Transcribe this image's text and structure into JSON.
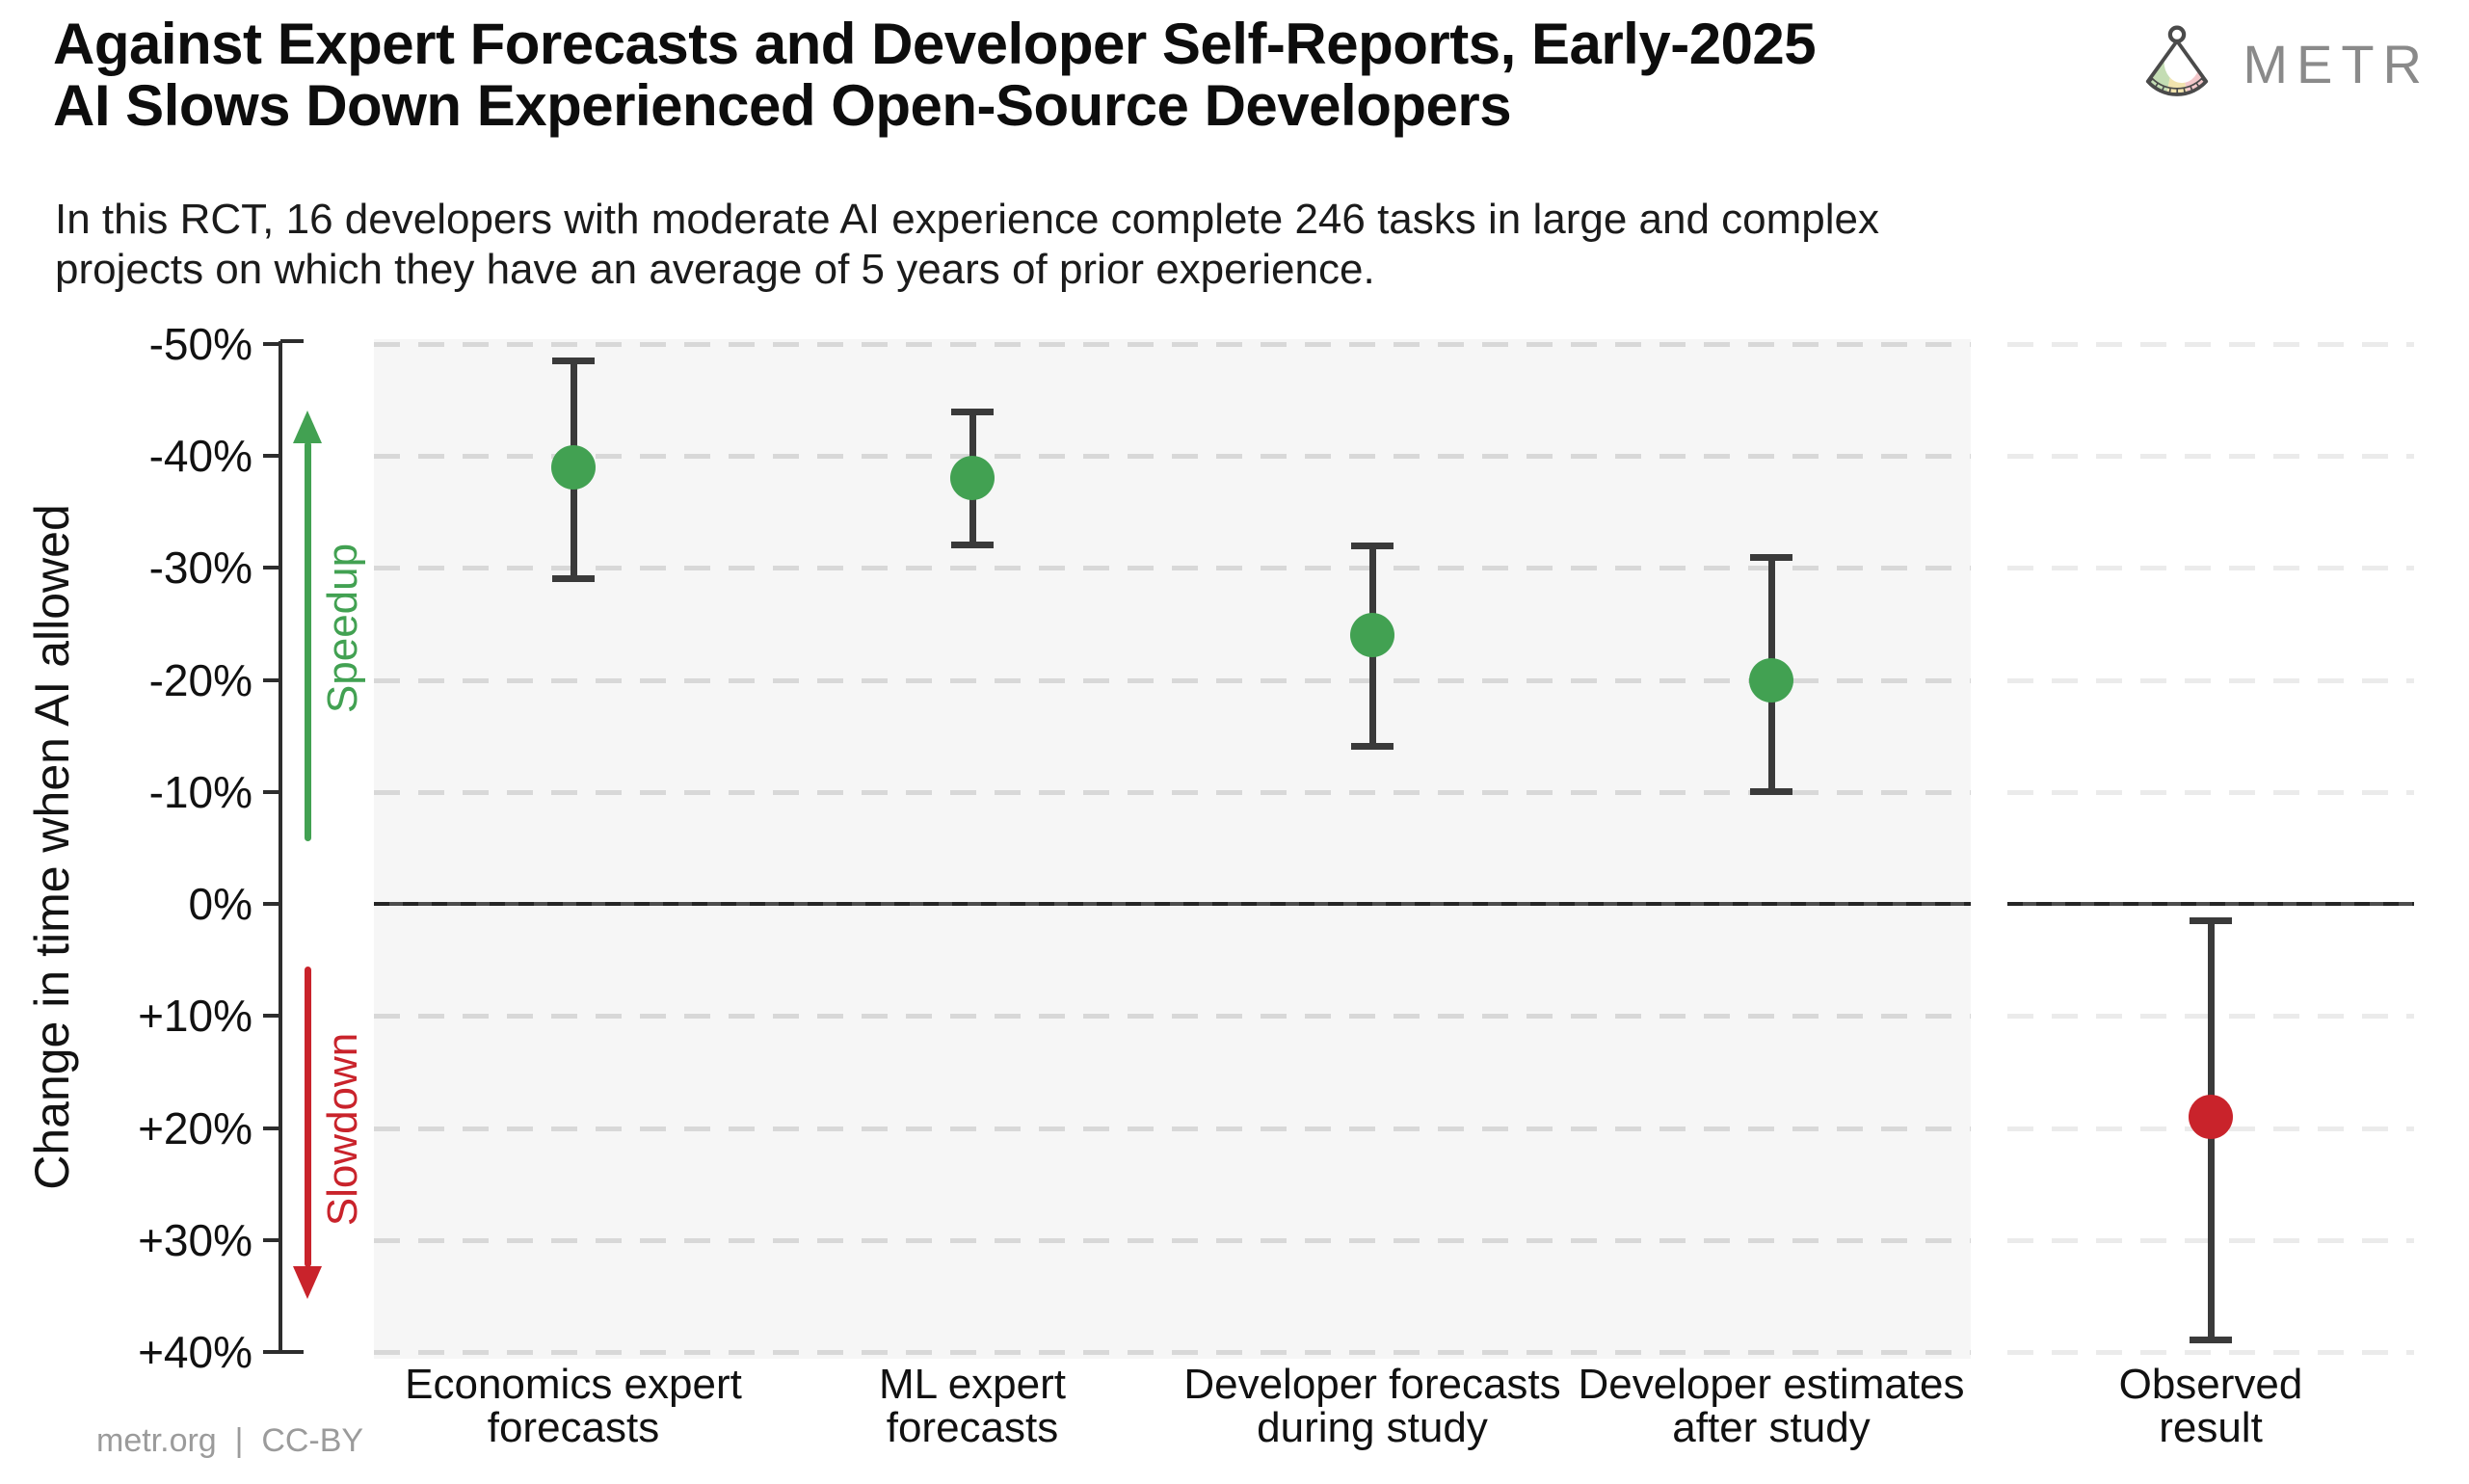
{
  "header": {
    "title_line1": "Against Expert Forecasts and Developer Self-Reports, Early-2025",
    "title_line2": "AI Slows Down Experienced Open-Source Developers",
    "subtitle_line1": "In this RCT, 16 developers with moderate AI experience complete 246 tasks in large and complex",
    "subtitle_line2": "projects on which they have an average of 5 years of prior experience.",
    "brand_name": "METR"
  },
  "footer": {
    "credit": "metr.org  |  CC-BY"
  },
  "chart_data": {
    "type": "scatter",
    "title": "Against Expert Forecasts and Developer Self-Reports, Early-2025 AI Slows Down Experienced Open-Source Developers",
    "ylabel": "Change in time when AI allowed",
    "ylim": [
      -50,
      40
    ],
    "y_axis_orientation": "inverted: negative (speedup) plotted upward, positive (slowdown) plotted downward",
    "grid": true,
    "legend": false,
    "yticks": [
      {
        "label": "-50%",
        "value": -50
      },
      {
        "label": "-40%",
        "value": -40
      },
      {
        "label": "-30%",
        "value": -30
      },
      {
        "label": "-20%",
        "value": -20
      },
      {
        "label": "-10%",
        "value": -10
      },
      {
        "label": "0%",
        "value": 0
      },
      {
        "label": "+10%",
        "value": 10
      },
      {
        "label": "+20%",
        "value": 20
      },
      {
        "label": "+30%",
        "value": 30
      },
      {
        "label": "+40%",
        "value": 40
      }
    ],
    "annotations": [
      {
        "text": "Speedup",
        "direction": "up",
        "color": "#42a152"
      },
      {
        "text": "Slowdown",
        "direction": "down",
        "color": "#c9232b"
      }
    ],
    "categories": [
      "Economics expert forecasts",
      "ML expert forecasts",
      "Developer forecasts during study",
      "Developer estimates after study",
      "Observed result"
    ],
    "points": [
      {
        "name": "economics-expert-forecasts",
        "label_lines": [
          "Economics expert",
          "forecasts"
        ],
        "value": -39,
        "ci": [
          -48.5,
          -29
        ],
        "color": "green",
        "panel": "main"
      },
      {
        "name": "ml-expert-forecasts",
        "label_lines": [
          "ML expert",
          "forecasts"
        ],
        "value": -38,
        "ci": [
          -44,
          -32
        ],
        "color": "green",
        "panel": "main"
      },
      {
        "name": "developer-forecasts-during-study",
        "label_lines": [
          "Developer forecasts",
          "during study"
        ],
        "value": -24,
        "ci": [
          -32,
          -14
        ],
        "color": "green",
        "panel": "main"
      },
      {
        "name": "developer-estimates-after-study",
        "label_lines": [
          "Developer estimates",
          "after study"
        ],
        "value": -20,
        "ci": [
          -31,
          -10
        ],
        "color": "green",
        "panel": "main"
      },
      {
        "name": "observed-result",
        "label_lines": [
          "Observed",
          "result"
        ],
        "value": 19,
        "ci": [
          1.5,
          39
        ],
        "color": "red",
        "panel": "right"
      }
    ],
    "zero_line": {
      "value": 0
    },
    "colors": {
      "green": "#42a152",
      "red": "#c9232b",
      "errorbar": "#3a3a3a",
      "panel_background": "#f6f6f6",
      "grid_main": "#d8d8d8",
      "grid_right": "#ebebeb",
      "text": "#111111",
      "muted": "#9b9b9b",
      "logo_gray": "#8a8a8a"
    }
  }
}
